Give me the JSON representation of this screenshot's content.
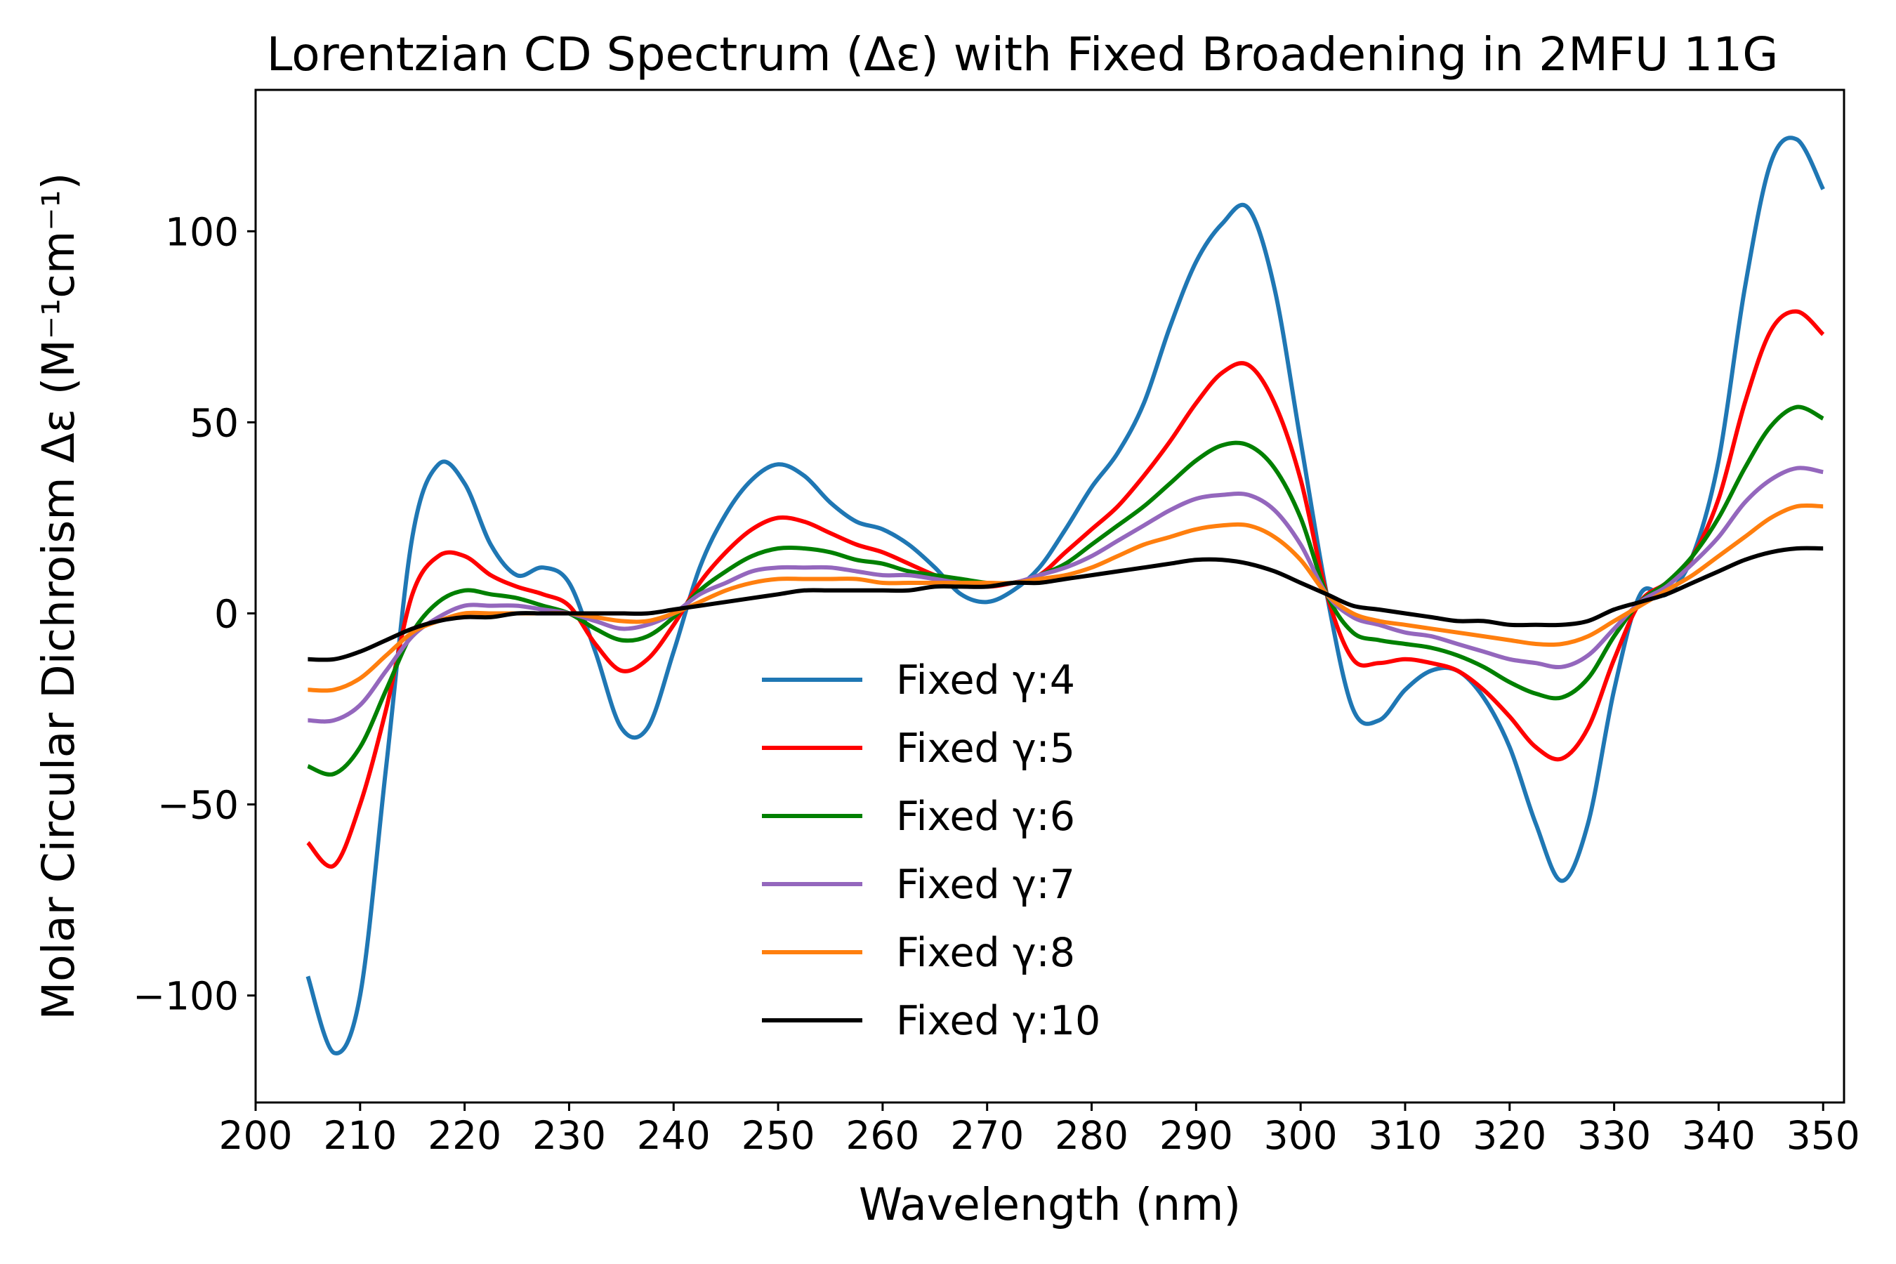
{
  "chart_data": {
    "type": "line",
    "title": "Lorentzian CD Spectrum (Δε) with Fixed Broadening in 2MFU 11G",
    "xlabel": "Wavelength (nm)",
    "ylabel": "Molar Circular Dichroism Δε (M⁻¹cm⁻¹)",
    "xlim": [
      200,
      352
    ],
    "ylim": [
      -128,
      137
    ],
    "xticks": [
      200,
      210,
      220,
      230,
      240,
      250,
      260,
      270,
      280,
      290,
      300,
      310,
      320,
      330,
      340,
      350
    ],
    "yticks": [
      -100,
      -50,
      0,
      50,
      100
    ],
    "ytick_labels": [
      "−100",
      "−50",
      "0",
      "50",
      "100"
    ],
    "grid": false,
    "legend_position": "lower-center",
    "x": [
      205,
      207.5,
      210,
      212.5,
      215,
      217.5,
      220,
      222.5,
      225,
      227.5,
      230,
      232.5,
      235,
      237.5,
      240,
      242.5,
      245,
      247.5,
      250,
      252.5,
      255,
      257.5,
      260,
      262.5,
      265,
      267.5,
      270,
      272.5,
      275,
      277.5,
      280,
      282.5,
      285,
      287.5,
      290,
      292.5,
      295,
      297.5,
      300,
      302.5,
      305,
      307.5,
      310,
      312.5,
      315,
      317.5,
      320,
      322.5,
      325,
      327.5,
      330,
      332.5,
      335,
      337.5,
      340,
      342.5,
      345,
      347.5,
      350
    ],
    "series": [
      {
        "name": "Fixed γ:4",
        "color": "#1f77b4",
        "values": [
          -95,
          -115,
          -100,
          -40,
          20,
          39,
          34,
          18,
          10,
          12,
          8,
          -10,
          -30,
          -30,
          -10,
          12,
          26,
          35,
          39,
          36,
          29,
          24,
          22,
          18,
          12,
          5,
          3,
          6,
          12,
          22,
          33,
          42,
          55,
          75,
          92,
          102,
          106,
          85,
          45,
          5,
          -25,
          -28,
          -20,
          -15,
          -15,
          -22,
          -35,
          -55,
          -70,
          -55,
          -20,
          5,
          5,
          15,
          40,
          85,
          118,
          124,
          111
        ]
      },
      {
        "name": "Fixed γ:5",
        "color": "#ff0000",
        "values": [
          -60,
          -66,
          -50,
          -25,
          5,
          15,
          15,
          10,
          7,
          5,
          2,
          -8,
          -15,
          -12,
          -3,
          8,
          16,
          22,
          25,
          24,
          21,
          18,
          16,
          13,
          10,
          8,
          7,
          8,
          10,
          16,
          22,
          28,
          36,
          45,
          55,
          63,
          65,
          55,
          35,
          5,
          -12,
          -13,
          -12,
          -13,
          -15,
          -20,
          -27,
          -35,
          -38,
          -30,
          -12,
          3,
          8,
          15,
          30,
          55,
          74,
          79,
          73
        ]
      },
      {
        "name": "Fixed γ:6",
        "color": "#008000",
        "values": [
          -40,
          -42,
          -35,
          -20,
          -5,
          3,
          6,
          5,
          4,
          2,
          0,
          -4,
          -7,
          -6,
          -1,
          6,
          11,
          15,
          17,
          17,
          16,
          14,
          13,
          11,
          10,
          9,
          8,
          8,
          10,
          13,
          18,
          23,
          28,
          34,
          40,
          44,
          44,
          38,
          25,
          5,
          -5,
          -7,
          -8,
          -9,
          -11,
          -14,
          -18,
          -21,
          -22,
          -17,
          -6,
          3,
          8,
          15,
          25,
          38,
          49,
          54,
          51
        ]
      },
      {
        "name": "Fixed γ:7",
        "color": "#9467bd",
        "values": [
          -28,
          -28,
          -24,
          -15,
          -6,
          -1,
          2,
          2,
          2,
          1,
          0,
          -2,
          -4,
          -3,
          0,
          5,
          8,
          11,
          12,
          12,
          12,
          11,
          10,
          10,
          9,
          8,
          8,
          8,
          10,
          12,
          15,
          19,
          23,
          27,
          30,
          31,
          31,
          27,
          18,
          5,
          -1,
          -3,
          -5,
          -6,
          -8,
          -10,
          -12,
          -13,
          -14,
          -11,
          -4,
          3,
          7,
          13,
          20,
          29,
          35,
          38,
          37
        ]
      },
      {
        "name": "Fixed γ:8",
        "color": "#ff7f0e",
        "values": [
          -20,
          -20,
          -17,
          -11,
          -5,
          -2,
          0,
          0,
          0,
          0,
          0,
          -1,
          -2,
          -2,
          0,
          3,
          6,
          8,
          9,
          9,
          9,
          9,
          8,
          8,
          8,
          8,
          8,
          8,
          9,
          10,
          12,
          15,
          18,
          20,
          22,
          23,
          23,
          20,
          14,
          5,
          0,
          -2,
          -3,
          -4,
          -5,
          -6,
          -7,
          -8,
          -8,
          -6,
          -2,
          2,
          6,
          10,
          15,
          20,
          25,
          28,
          28
        ]
      },
      {
        "name": "Fixed γ:10",
        "color": "#000000",
        "values": [
          -12,
          -12,
          -10,
          -7,
          -4,
          -2,
          -1,
          -1,
          0,
          0,
          0,
          0,
          0,
          0,
          1,
          2,
          3,
          4,
          5,
          6,
          6,
          6,
          6,
          6,
          7,
          7,
          7,
          8,
          8,
          9,
          10,
          11,
          12,
          13,
          14,
          14,
          13,
          11,
          8,
          5,
          2,
          1,
          0,
          -1,
          -2,
          -2,
          -3,
          -3,
          -3,
          -2,
          1,
          3,
          5,
          8,
          11,
          14,
          16,
          17,
          17
        ]
      }
    ]
  }
}
